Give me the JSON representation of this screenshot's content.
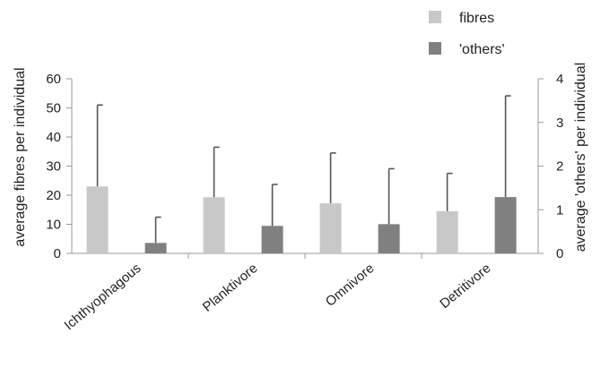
{
  "chart_data": {
    "type": "bar",
    "categories": [
      "Ichthyophagous",
      "Planktivore",
      "Omnivore",
      "Detritivore"
    ],
    "series": [
      {
        "name": "fibres",
        "axis": "left",
        "color": "#c8c8c8",
        "values": [
          23,
          19.3,
          17.2,
          14.5
        ],
        "error_upper": [
          51,
          36.5,
          34.5,
          27.5
        ]
      },
      {
        "name": "'others'",
        "axis": "right",
        "color": "#808080",
        "values": [
          0.24,
          0.63,
          0.67,
          1.29
        ],
        "error_upper": [
          0.83,
          1.58,
          1.94,
          3.61
        ]
      }
    ],
    "ylabel_left": "average fibres per individual",
    "ylabel_right": "average 'others' per individual",
    "ylim_left": [
      0,
      60
    ],
    "yticks_left": [
      "0",
      "10",
      "20",
      "30",
      "40",
      "50",
      "60"
    ],
    "ylim_right": [
      0,
      4
    ],
    "yticks_right": [
      "0",
      "1",
      "2",
      "3",
      "4"
    ],
    "grid": false,
    "legend_position": "top-right",
    "error_bar_color": "#555555"
  }
}
